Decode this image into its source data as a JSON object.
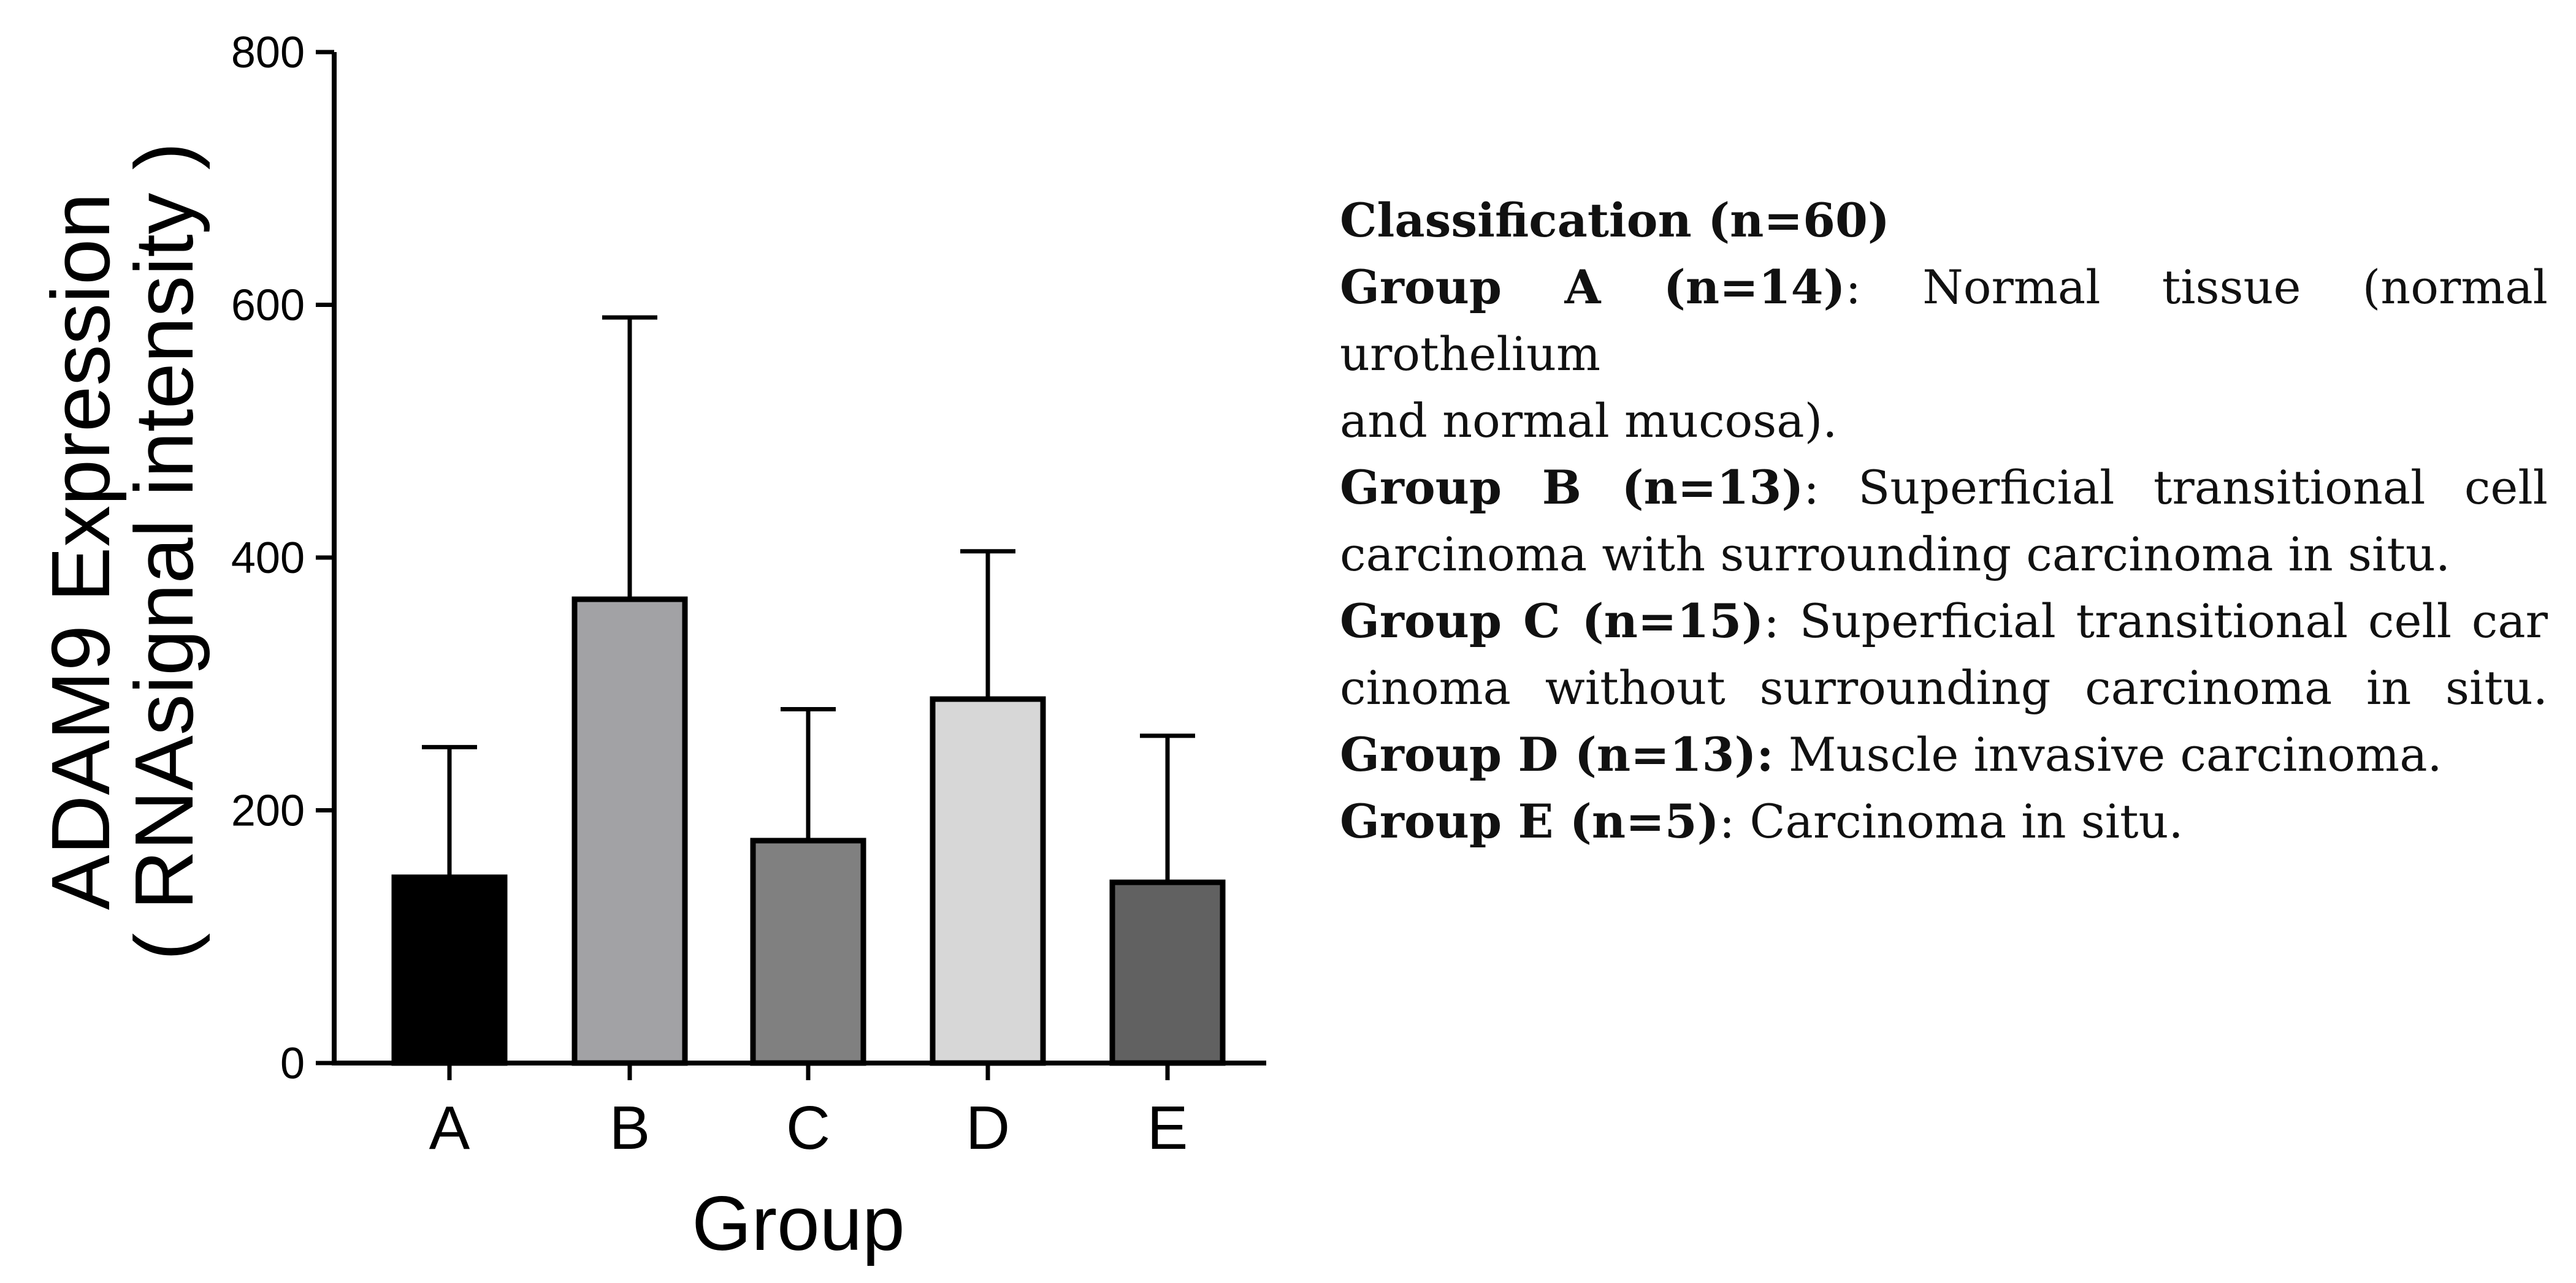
{
  "chart_data": {
    "type": "bar",
    "ylabel_line1": "ADAM9 Expression",
    "ylabel_line2": "( RNAsignal intensity )",
    "xlabel": "Group",
    "ylim": [
      0,
      800
    ],
    "yticks": [
      0,
      200,
      400,
      600,
      800
    ],
    "categories": [
      "A",
      "B",
      "C",
      "D",
      "E"
    ],
    "values": [
      147,
      367,
      176,
      288,
      143
    ],
    "error_upper": [
      250,
      590,
      280,
      405,
      259
    ],
    "colors": [
      "#000000",
      "#a2a2a5",
      "#808080",
      "#d7d7d7",
      "#616161"
    ]
  },
  "legend": {
    "title": "Classification (n=60)",
    "lines": [
      {
        "bold": "Group A (n=14)",
        "text": ": Normal tissue (normal urothelium",
        "last": false
      },
      {
        "bold": "",
        "text": "and normal mucosa).",
        "last": true
      },
      {
        "bold": "Group B (n=13)",
        "text": ": Superficial transitional cell",
        "last": false
      },
      {
        "bold": "",
        "text": "carcinoma with surrounding carcinoma in situ.",
        "last": true
      },
      {
        "bold": "Group C (n=15)",
        "text": ": Superficial transitional cell car",
        "last": false
      },
      {
        "bold": "",
        "text": "cinoma without surrounding carcinoma in situ.",
        "last": false
      },
      {
        "bold": "Group D (n=13):",
        "text": " Muscle invasive carcinoma.",
        "last": true
      },
      {
        "bold": "Group E (n=5)",
        "text": ": Carcinoma in situ.",
        "last": true
      }
    ]
  }
}
